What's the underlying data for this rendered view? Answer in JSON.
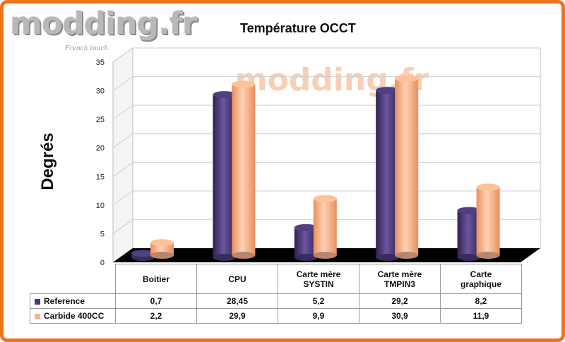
{
  "logo": {
    "text": "modding.fr",
    "tagline": "French touch"
  },
  "watermark": "modding.fr",
  "colors": {
    "reference": "#4b3a7a",
    "carbide": "#f5b38c",
    "frame": "#f0731f"
  },
  "chart_data": {
    "type": "bar",
    "title": "Température OCCT",
    "xlabel": "",
    "ylabel": "Degrés",
    "ylim": [
      0,
      35
    ],
    "yticks": [
      0,
      5,
      10,
      15,
      20,
      25,
      30,
      35
    ],
    "categories": [
      "Boitier",
      "CPU",
      "Carte mère SYSTIN",
      "Carte mère TMPIN3",
      "Carte graphique"
    ],
    "category_lines": [
      [
        "Boitier"
      ],
      [
        "CPU"
      ],
      [
        "Carte mère",
        "SYSTIN"
      ],
      [
        "Carte mère",
        "TMPIN3"
      ],
      [
        "Carte",
        "graphique"
      ]
    ],
    "series": [
      {
        "name": "Reference",
        "values": [
          0.7,
          28.45,
          5.2,
          29.2,
          8.2
        ],
        "labels": [
          "0,7",
          "28,45",
          "5,2",
          "29,2",
          "8,2"
        ]
      },
      {
        "name": "Carbide 400CC",
        "values": [
          2.2,
          29.9,
          9.9,
          30.9,
          11.9
        ],
        "labels": [
          "2,2",
          "29,9",
          "9,9",
          "30,9",
          "11,9"
        ]
      }
    ],
    "grid": true,
    "legend": "data-table"
  }
}
